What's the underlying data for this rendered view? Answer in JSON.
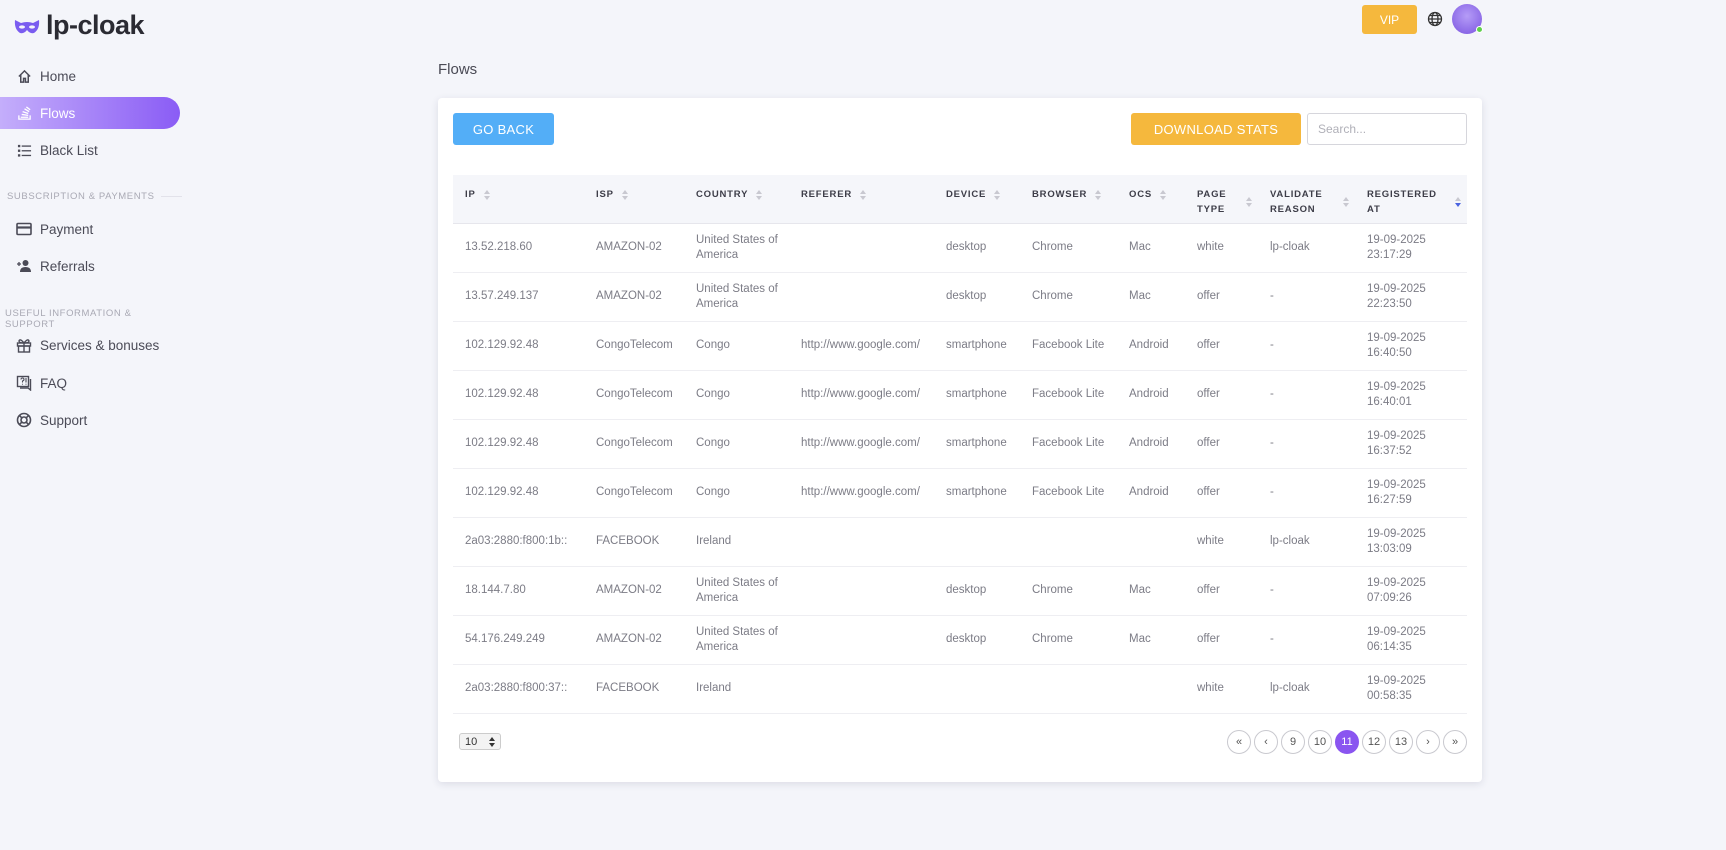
{
  "app": {
    "name": "lp-cloak",
    "accent": "#8a55f0"
  },
  "sidebar": {
    "items": [
      {
        "label": "Home",
        "icon": "home-icon"
      },
      {
        "label": "Flows",
        "icon": "flows-icon",
        "active": true
      },
      {
        "label": "Black List",
        "icon": "list-icon"
      }
    ],
    "section1": "SUBSCRIPTION & PAYMENTS",
    "items2": [
      {
        "label": "Payment",
        "icon": "credit-card-icon"
      },
      {
        "label": "Referrals",
        "icon": "user-plus-icon"
      }
    ],
    "section2": "USEFUL INFORMATION & SUPPORT",
    "items3": [
      {
        "label": "Services & bonuses",
        "icon": "gift-icon"
      },
      {
        "label": "FAQ",
        "icon": "faq-icon"
      },
      {
        "label": "Support",
        "icon": "lifebuoy-icon"
      }
    ]
  },
  "header": {
    "vip_label": "VIP"
  },
  "page": {
    "title": "Flows",
    "go_back": "GO BACK",
    "download": "DOWNLOAD STATS",
    "search_placeholder": "Search..."
  },
  "table": {
    "columns": [
      "IP",
      "ISP",
      "COUNTRY",
      "REFERER",
      "DEVICE",
      "BROWSER",
      "OCS",
      "PAGE TYPE",
      "VALIDATE REASON",
      "REGISTERED AT"
    ],
    "sorted_column": "REGISTERED AT",
    "sort_dir": "desc",
    "rows": [
      [
        "13.52.218.60",
        "AMAZON-02",
        "United States of America",
        "",
        "desktop",
        "Chrome",
        "Mac",
        "white",
        "lp-cloak",
        "19-09-2025 23:17:29"
      ],
      [
        "13.57.249.137",
        "AMAZON-02",
        "United States of America",
        "",
        "desktop",
        "Chrome",
        "Mac",
        "offer",
        "-",
        "19-09-2025 22:23:50"
      ],
      [
        "102.129.92.48",
        "CongoTelecom",
        "Congo",
        "http://www.google.com/",
        "smartphone",
        "Facebook Lite",
        "Android",
        "offer",
        "-",
        "19-09-2025 16:40:50"
      ],
      [
        "102.129.92.48",
        "CongoTelecom",
        "Congo",
        "http://www.google.com/",
        "smartphone",
        "Facebook Lite",
        "Android",
        "offer",
        "-",
        "19-09-2025 16:40:01"
      ],
      [
        "102.129.92.48",
        "CongoTelecom",
        "Congo",
        "http://www.google.com/",
        "smartphone",
        "Facebook Lite",
        "Android",
        "offer",
        "-",
        "19-09-2025 16:37:52"
      ],
      [
        "102.129.92.48",
        "CongoTelecom",
        "Congo",
        "http://www.google.com/",
        "smartphone",
        "Facebook Lite",
        "Android",
        "offer",
        "-",
        "19-09-2025 16:27:59"
      ],
      [
        "2a03:2880:f800:1b::",
        "FACEBOOK",
        "Ireland",
        "",
        "",
        "",
        "",
        "white",
        "lp-cloak",
        "19-09-2025 13:03:09"
      ],
      [
        "18.144.7.80",
        "AMAZON-02",
        "United States of America",
        "",
        "desktop",
        "Chrome",
        "Mac",
        "offer",
        "-",
        "19-09-2025 07:09:26"
      ],
      [
        "54.176.249.249",
        "AMAZON-02",
        "United States of America",
        "",
        "desktop",
        "Chrome",
        "Mac",
        "offer",
        "-",
        "19-09-2025 06:14:35"
      ],
      [
        "2a03:2880:f800:37::",
        "FACEBOOK",
        "Ireland",
        "",
        "",
        "",
        "",
        "white",
        "lp-cloak",
        "19-09-2025 00:58:35"
      ]
    ]
  },
  "pagination": {
    "page_size": "10",
    "first": "«",
    "prev": "‹",
    "pages": [
      "9",
      "10",
      "11",
      "12",
      "13"
    ],
    "current": "11",
    "next": "›",
    "last": "»"
  }
}
